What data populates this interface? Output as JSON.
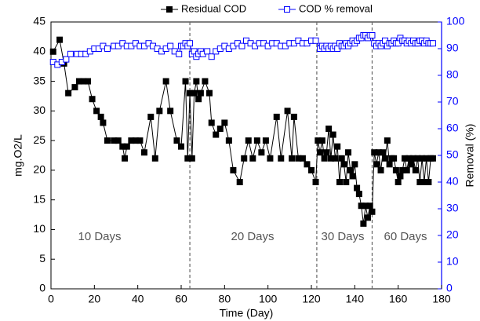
{
  "chart_data": {
    "type": "line",
    "xlabel": "Time (Day)",
    "ylabel": "mg.O2/L",
    "y2label": "Removal (%)",
    "xlim": [
      0,
      180
    ],
    "xticks": [
      0,
      20,
      40,
      60,
      80,
      100,
      120,
      140,
      160,
      180
    ],
    "ylim": [
      0,
      45
    ],
    "yticks": [
      0,
      5,
      10,
      15,
      20,
      25,
      30,
      35,
      40,
      45
    ],
    "y2lim": [
      0,
      100
    ],
    "y2ticks": [
      0,
      10,
      20,
      30,
      40,
      50,
      60,
      70,
      80,
      90,
      100
    ],
    "y2color": "#0000ff",
    "reference_lines": [
      64,
      122.5,
      148
    ],
    "annotations": [
      "10 Days",
      "20 Days",
      "30 Days",
      "60 Days"
    ],
    "legend": "top",
    "series": [
      {
        "name": "Residual COD",
        "color": "#000000",
        "marker": "filled-square",
        "x": [
          1,
          4,
          6,
          8,
          11,
          13,
          15,
          17,
          19,
          21,
          23,
          24,
          26,
          29,
          31,
          33,
          34,
          35,
          37,
          39,
          41,
          43,
          46,
          48,
          50,
          53,
          55,
          58,
          60,
          62,
          63,
          64,
          65,
          66,
          67,
          68,
          69,
          71,
          73,
          74,
          76,
          78,
          80,
          82,
          84,
          87,
          89,
          91,
          93,
          95,
          97,
          99,
          101,
          104,
          106,
          109,
          111,
          112,
          114,
          116,
          118,
          120,
          122,
          123,
          124,
          125,
          126,
          127,
          128,
          129,
          130,
          131,
          132,
          133,
          134,
          135,
          136,
          137,
          138,
          139,
          140,
          141,
          142,
          143,
          144,
          145,
          146,
          147,
          148,
          149,
          150,
          151,
          152,
          153,
          154,
          155,
          156,
          157,
          158,
          159,
          160,
          161,
          162,
          163,
          164,
          165,
          166,
          167,
          168,
          169,
          170,
          171,
          172,
          173,
          174,
          175,
          176
        ],
        "values": [
          40,
          42,
          38,
          33,
          34,
          35,
          35,
          35,
          32,
          30,
          29,
          28,
          25,
          25,
          25,
          24,
          22,
          24,
          25,
          25,
          25,
          23,
          29,
          22,
          30,
          35,
          30,
          25,
          24,
          35,
          22,
          33,
          22,
          33,
          35,
          32,
          33,
          35,
          33,
          28,
          26,
          27,
          28,
          25,
          20,
          18,
          22,
          25,
          22,
          25,
          23,
          25,
          22,
          29,
          22,
          30,
          22,
          29,
          22,
          22,
          21,
          20,
          18,
          25,
          23,
          25,
          22,
          23,
          27,
          22,
          26,
          22,
          24,
          18,
          22,
          21,
          18,
          23,
          20,
          19,
          21,
          17,
          16,
          14,
          11,
          14,
          12,
          14,
          13,
          23,
          21,
          23,
          20,
          23,
          22,
          25,
          21,
          22,
          22,
          20,
          18,
          19,
          20,
          22,
          20,
          22,
          21,
          22,
          20,
          22,
          18,
          22,
          18,
          22,
          18,
          22,
          22
        ]
      },
      {
        "name": "COD % removal",
        "color": "#0000ff",
        "marker": "open-square",
        "axis": "y2",
        "x": [
          1,
          3,
          5,
          7,
          9,
          12,
          14,
          16,
          18,
          20,
          22,
          24,
          26,
          29,
          31,
          33,
          35,
          37,
          39,
          41,
          43,
          45,
          47,
          49,
          51,
          53,
          55,
          57,
          59,
          60,
          61,
          62,
          63,
          64,
          65,
          66,
          67,
          68,
          69,
          70,
          72,
          74,
          76,
          78,
          80,
          82,
          84,
          86,
          88,
          90,
          92,
          94,
          96,
          98,
          100,
          102,
          104,
          106,
          108,
          110,
          112,
          114,
          116,
          118,
          120,
          122,
          124,
          125,
          126,
          127,
          128,
          129,
          130,
          131,
          132,
          133,
          134,
          135,
          136,
          137,
          138,
          139,
          140,
          141,
          142,
          143,
          144,
          145,
          146,
          147,
          148,
          149,
          150,
          151,
          152,
          153,
          154,
          155,
          156,
          157,
          158,
          159,
          160,
          161,
          162,
          163,
          164,
          165,
          166,
          167,
          168,
          169,
          170,
          171,
          172,
          173,
          174,
          175,
          176
        ],
        "values": [
          85,
          84,
          85,
          86,
          88,
          88,
          88,
          88,
          89,
          90,
          90,
          91,
          90,
          91,
          91,
          92,
          91,
          91,
          92,
          91,
          91,
          92,
          91,
          90,
          89,
          90,
          91,
          89,
          88,
          91,
          91,
          92,
          91,
          92,
          88,
          89,
          87,
          88,
          89,
          88,
          89,
          87,
          89,
          90,
          91,
          90,
          91,
          92,
          91,
          93,
          92,
          91,
          92,
          92,
          91,
          92,
          92,
          91,
          91,
          92,
          92,
          93,
          92,
          92,
          93,
          93,
          90,
          91,
          90,
          91,
          90,
          91,
          90,
          91,
          90,
          92,
          91,
          91,
          92,
          91,
          92,
          93,
          92,
          93,
          94,
          94,
          95,
          95,
          94,
          95,
          95,
          92,
          91,
          92,
          91,
          92,
          93,
          91,
          92,
          92,
          93,
          92,
          92,
          94,
          93,
          93,
          92,
          93,
          92,
          93,
          92,
          92,
          93,
          93,
          92,
          93,
          92,
          92,
          92
        ]
      }
    ]
  }
}
